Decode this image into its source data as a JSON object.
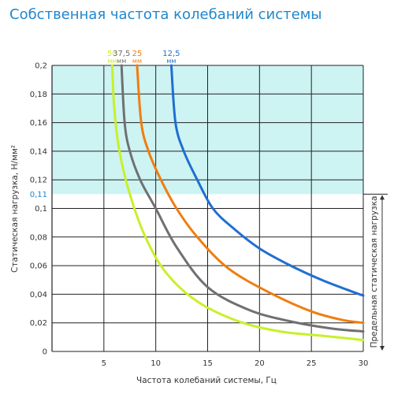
{
  "chart_data": {
    "type": "line",
    "title": "Собственная частота колебаний системы",
    "xlabel": "Частота колебаний системы, Гц",
    "ylabel": "Статическая нагрузка, Н/мм²",
    "right_label": "Предельная статическая нагрузка",
    "xlim": [
      0,
      30
    ],
    "ylim": [
      0,
      0.2
    ],
    "x_ticks": [
      "5",
      "10",
      "15",
      "20",
      "25",
      "30"
    ],
    "x_tick_values": [
      5,
      10,
      15,
      20,
      25,
      30
    ],
    "y_ticks": [
      "0",
      "0,02",
      "0,04",
      "0,06",
      "0,08",
      "0,1",
      "0,11",
      "0,12",
      "0,14",
      "0,16",
      "0,18",
      "0,2"
    ],
    "y_tick_values": [
      0,
      0.02,
      0.04,
      0.06,
      0.08,
      0.1,
      0.11,
      0.12,
      0.14,
      0.16,
      0.18,
      0.2
    ],
    "grid": true,
    "shaded_region": {
      "y_from": 0.11,
      "y_to": 0.2,
      "color": "#cdf3f3"
    },
    "limit_load": 0.11,
    "series": [
      {
        "name": "50",
        "unit": "мм",
        "color": "#c8f02a",
        "x": [
          5.8,
          6.0,
          6.5,
          7.5,
          9.0,
          11.0,
          14.0,
          18.0,
          22.0,
          26.0,
          30.0
        ],
        "y": [
          0.2,
          0.17,
          0.14,
          0.11,
          0.08,
          0.055,
          0.035,
          0.021,
          0.014,
          0.011,
          0.008
        ]
      },
      {
        "name": "37,5",
        "unit": "мм",
        "color": "#707070",
        "x": [
          6.7,
          7.0,
          7.5,
          8.5,
          10.0,
          12.0,
          15.0,
          19.0,
          23.0,
          27.0,
          30.0
        ],
        "y": [
          0.2,
          0.16,
          0.14,
          0.12,
          0.1,
          0.073,
          0.045,
          0.029,
          0.021,
          0.016,
          0.014
        ]
      },
      {
        "name": "25",
        "unit": "мм",
        "color": "#f07d10",
        "x": [
          8.2,
          8.6,
          9.3,
          10.5,
          12.0,
          14.0,
          17.0,
          21.0,
          25.0,
          28.0,
          30.0
        ],
        "y": [
          0.2,
          0.16,
          0.14,
          0.12,
          0.1,
          0.08,
          0.058,
          0.041,
          0.028,
          0.022,
          0.02
        ]
      },
      {
        "name": "12,5",
        "unit": "мм",
        "color": "#1f6fd1",
        "x": [
          11.5,
          11.9,
          12.7,
          14.0,
          15.5,
          17.5,
          20.0,
          23.0,
          26.0,
          28.5,
          30.0
        ],
        "y": [
          0.2,
          0.16,
          0.14,
          0.12,
          0.1,
          0.086,
          0.072,
          0.06,
          0.05,
          0.043,
          0.039
        ]
      }
    ]
  }
}
